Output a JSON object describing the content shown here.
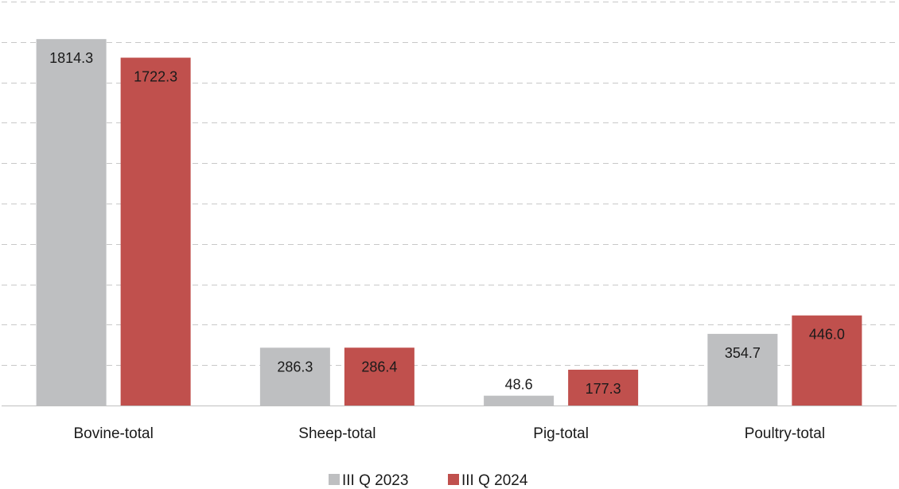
{
  "chart_data": {
    "type": "bar",
    "title": "",
    "xlabel": "",
    "ylabel": "",
    "categories": [
      "Bovine-total",
      "Sheep-total",
      "Pig-total",
      "Poultry-total"
    ],
    "series": [
      {
        "name": "III Q 2023",
        "color": "#bebfc1",
        "values": [
          1814.3,
          286.3,
          48.6,
          354.7
        ],
        "labels": [
          "1814.3",
          "286.3",
          "48.6",
          "354.7"
        ]
      },
      {
        "name": "III Q 2024",
        "color": "#c0504d",
        "values": [
          1722.3,
          286.4,
          177.3,
          446.0
        ],
        "labels": [
          "1722.3",
          "286.4",
          "177.3",
          "446.0"
        ]
      }
    ],
    "ylim": [
      0,
      2000
    ],
    "gridlines": [
      200,
      400,
      600,
      800,
      1000,
      1200,
      1400,
      1600,
      1800,
      2000
    ],
    "grid": true,
    "grid_style": "dashed",
    "axis_labels_visible": false,
    "legend_position": "bottom-center"
  }
}
